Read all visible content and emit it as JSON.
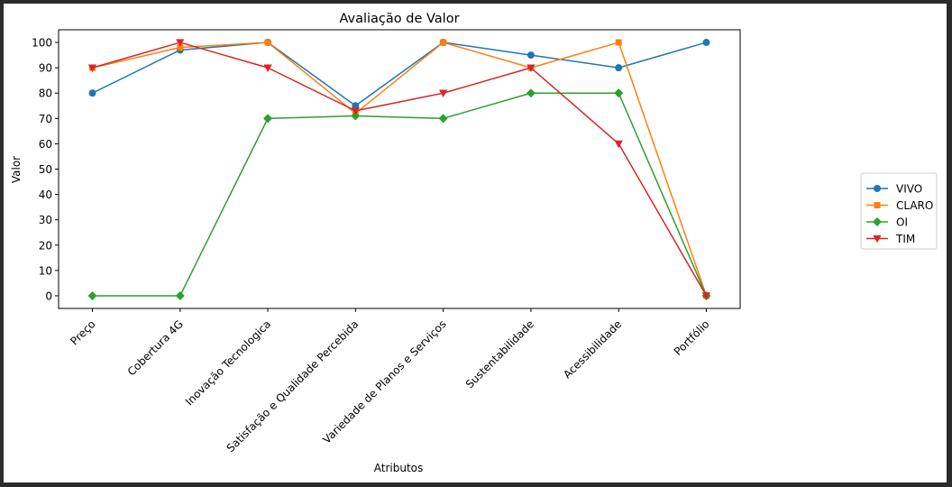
{
  "chart_data": {
    "type": "line",
    "title": "Avaliação de Valor",
    "xlabel": "Atributos",
    "ylabel": "Valor",
    "categories": [
      "Preço",
      "Cobertura 4G",
      "Inovação Tecnologica",
      "Satisfação e Qualidade Percebida",
      "Variedade de Planos e Serviços",
      "Sustentabilidade",
      "Acessibilidade",
      "Portfólio"
    ],
    "ylim": [
      -5,
      105
    ],
    "yticks": [
      0,
      10,
      20,
      30,
      40,
      50,
      60,
      70,
      80,
      90,
      100
    ],
    "ytick_labels": [
      "0",
      "10",
      "20",
      "30",
      "40",
      "50",
      "60",
      "70",
      "80",
      "90",
      "100"
    ],
    "grid": false,
    "legend_position": "outside-right",
    "series": [
      {
        "name": "VIVO",
        "color": "#1f77b4",
        "marker": "circle",
        "values": [
          80,
          97,
          100,
          75,
          100,
          95,
          90,
          100
        ]
      },
      {
        "name": "CLARO",
        "color": "#ff7f0e",
        "marker": "square",
        "values": [
          90,
          98,
          100,
          72,
          100,
          90,
          100,
          0
        ]
      },
      {
        "name": "OI",
        "color": "#2ca02c",
        "marker": "diamond",
        "values": [
          0,
          0,
          70,
          71,
          70,
          80,
          80,
          0
        ]
      },
      {
        "name": "TIM",
        "color": "#d62728",
        "marker": "triangle-down",
        "values": [
          90,
          100,
          90,
          73,
          80,
          90,
          60,
          0
        ]
      }
    ]
  }
}
